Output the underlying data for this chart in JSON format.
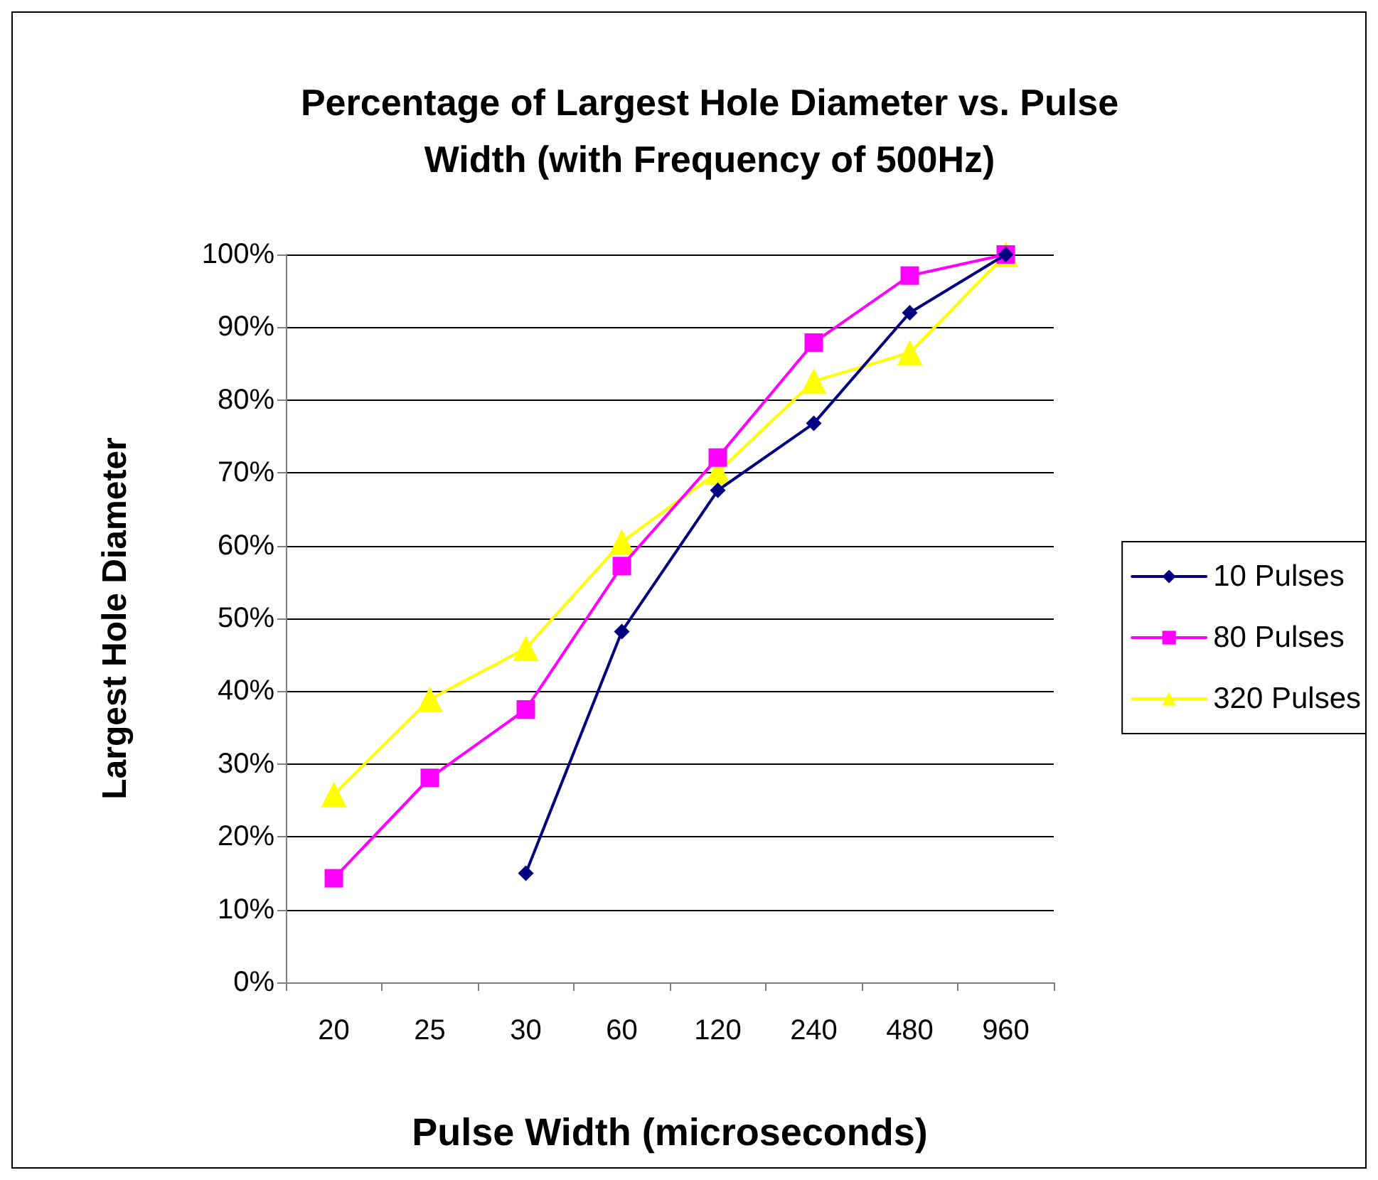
{
  "chart_data": {
    "type": "line",
    "title": "Percentage of Largest Hole Diameter vs. Pulse\nWidth (with Frequency of 500Hz)",
    "xlabel": "Pulse Width (microseconds)",
    "ylabel": "Largest Hole Diameter",
    "categories": [
      "20",
      "25",
      "30",
      "60",
      "120",
      "240",
      "480",
      "960"
    ],
    "series": [
      {
        "name": "10 Pulses",
        "color": "#000080",
        "marker": "diamond",
        "values": [
          null,
          null,
          15.0,
          48.2,
          67.6,
          76.8,
          92.0,
          100
        ]
      },
      {
        "name": "80 Pulses",
        "color": "#ff00ff",
        "marker": "square",
        "values": [
          14.3,
          28.1,
          37.5,
          57.2,
          72.1,
          87.9,
          97.1,
          100
        ]
      },
      {
        "name": "320 Pulses",
        "color": "#ffff00",
        "marker": "triangle",
        "values": [
          25.8,
          38.9,
          45.9,
          60.5,
          70.1,
          82.6,
          86.5,
          100
        ]
      }
    ],
    "ylim": [
      0,
      100
    ],
    "yticks": [
      {
        "value": 0,
        "label": "0%"
      },
      {
        "value": 10,
        "label": "10%"
      },
      {
        "value": 20,
        "label": "20%"
      },
      {
        "value": 30,
        "label": "30%"
      },
      {
        "value": 40,
        "label": "40%"
      },
      {
        "value": 50,
        "label": "50%"
      },
      {
        "value": 60,
        "label": "60%"
      },
      {
        "value": 70,
        "label": "70%"
      },
      {
        "value": 80,
        "label": "80%"
      },
      {
        "value": 90,
        "label": "90%"
      },
      {
        "value": 100,
        "label": "100%"
      }
    ],
    "grid": "y",
    "legend": "right",
    "line_style": "solid"
  }
}
